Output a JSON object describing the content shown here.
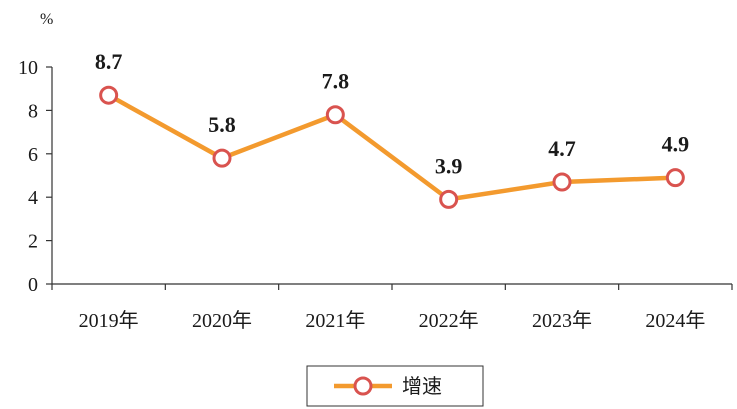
{
  "chart_data": {
    "type": "line",
    "categories": [
      "2019年",
      "2020年",
      "2021年",
      "2022年",
      "2023年",
      "2024年"
    ],
    "series": [
      {
        "name": "增速",
        "values": [
          8.7,
          5.8,
          7.8,
          3.9,
          4.7,
          4.9
        ]
      }
    ],
    "y_unit": "%",
    "ylim": [
      0,
      10
    ],
    "yticks": [
      "0",
      "2",
      "4",
      "6",
      "8",
      "10"
    ],
    "data_labels": [
      "8.7",
      "5.8",
      "7.8",
      "3.9",
      "4.7",
      "4.9"
    ],
    "grid": false,
    "legend": "bottom",
    "colors": {
      "line": "#f39a2e",
      "marker_edge": "#d9534f",
      "marker_fill": "#ffffff",
      "axis": "#333333"
    }
  }
}
